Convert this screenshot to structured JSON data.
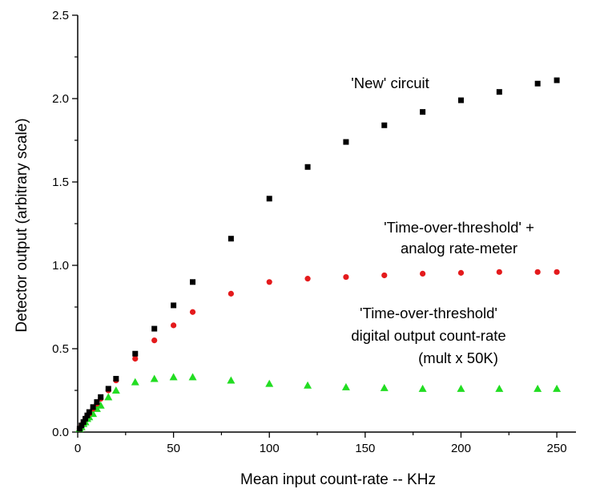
{
  "chart_data": {
    "type": "scatter",
    "title": "",
    "xlabel": "Mean input count-rate -- KHz",
    "ylabel": "Detector output (arbitrary scale)",
    "xlim": [
      0,
      260
    ],
    "ylim": [
      0,
      2.5
    ],
    "grid": false,
    "x_ticks": [
      "0",
      "50",
      "100",
      "150",
      "200",
      "250"
    ],
    "y_ticks": [
      "0.0",
      "0.5",
      "1.0",
      "1.5",
      "2.0",
      "2.5"
    ],
    "series": [
      {
        "name": "'New' circuit",
        "marker": "square",
        "color": "#000000",
        "x": [
          1,
          2,
          3,
          4,
          5,
          6,
          8,
          10,
          12,
          16,
          20,
          30,
          40,
          50,
          60,
          80,
          100,
          120,
          140,
          160,
          180,
          200,
          220,
          240,
          250
        ],
        "y": [
          0.02,
          0.04,
          0.06,
          0.08,
          0.1,
          0.12,
          0.15,
          0.18,
          0.21,
          0.26,
          0.32,
          0.47,
          0.62,
          0.76,
          0.9,
          1.16,
          1.4,
          1.59,
          1.74,
          1.84,
          1.92,
          1.99,
          2.04,
          2.09,
          2.11
        ]
      },
      {
        "name": "'Time-over-threshold' + analog rate-meter",
        "marker": "circle",
        "color": "#e41a1c",
        "x": [
          1,
          2,
          3,
          4,
          5,
          6,
          8,
          10,
          12,
          16,
          20,
          30,
          40,
          50,
          60,
          80,
          100,
          120,
          140,
          160,
          180,
          200,
          220,
          240,
          250
        ],
        "y": [
          0.02,
          0.04,
          0.06,
          0.08,
          0.1,
          0.11,
          0.14,
          0.17,
          0.2,
          0.25,
          0.31,
          0.44,
          0.55,
          0.64,
          0.72,
          0.83,
          0.9,
          0.92,
          0.93,
          0.94,
          0.95,
          0.955,
          0.96,
          0.96,
          0.96
        ]
      },
      {
        "name": "'Time-over-threshold' digital output count-rate (mult x 50K)",
        "marker": "triangle",
        "color": "#22dd22",
        "x": [
          1,
          2,
          3,
          4,
          5,
          6,
          8,
          10,
          12,
          16,
          20,
          30,
          40,
          50,
          60,
          80,
          100,
          120,
          140,
          160,
          180,
          200,
          220,
          240,
          250
        ],
        "y": [
          0.02,
          0.03,
          0.05,
          0.06,
          0.08,
          0.09,
          0.11,
          0.14,
          0.16,
          0.21,
          0.25,
          0.3,
          0.32,
          0.33,
          0.33,
          0.31,
          0.29,
          0.28,
          0.27,
          0.265,
          0.26,
          0.26,
          0.26,
          0.26,
          0.26
        ]
      }
    ],
    "annotations": [
      [
        "'New' circuit"
      ],
      [
        "'Time-over-threshold' +",
        "analog rate-meter"
      ],
      [
        "'Time-over-threshold'",
        "digital output count-rate",
        "(mult x 50K)"
      ]
    ]
  }
}
